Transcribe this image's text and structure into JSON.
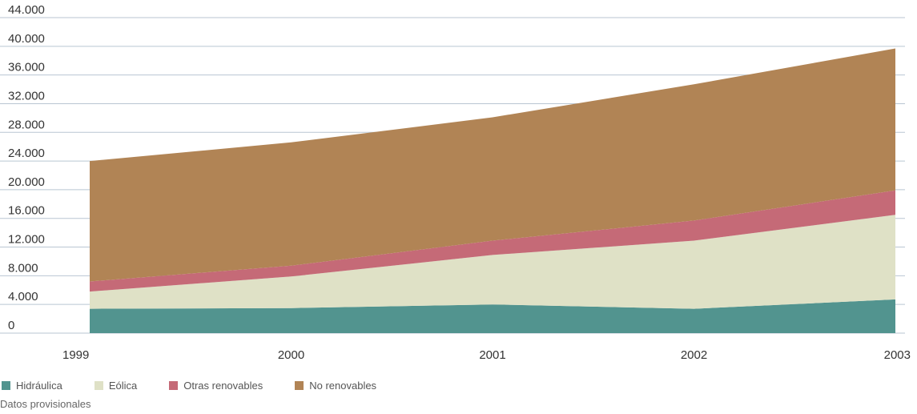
{
  "chart_data": {
    "type": "area",
    "stacked": true,
    "categories": [
      "1999",
      "2000",
      "2001",
      "2002",
      "2003"
    ],
    "y_ticks": [
      "0",
      "4.000",
      "8.000",
      "12.000",
      "16.000",
      "20.000",
      "24.000",
      "28.000",
      "32.000",
      "36.000",
      "40.000",
      "44.000"
    ],
    "ylim": [
      0,
      44000
    ],
    "grid": true,
    "legend_position": "bottom-left",
    "series": [
      {
        "name": "Hidráulica",
        "color": "#52948f",
        "values": [
          3400,
          3500,
          4000,
          3400,
          4700
        ]
      },
      {
        "name": "Eólica",
        "color": "#dfe1c6",
        "values": [
          2400,
          4400,
          6900,
          9500,
          11800
        ]
      },
      {
        "name": "Otras renovables",
        "color": "#c56a77",
        "values": [
          1400,
          1500,
          2000,
          2800,
          3400
        ]
      },
      {
        "name": "No renovables",
        "color": "#b18455",
        "values": [
          16800,
          17200,
          17200,
          19000,
          19800
        ]
      }
    ]
  },
  "note": "Datos provisionales"
}
